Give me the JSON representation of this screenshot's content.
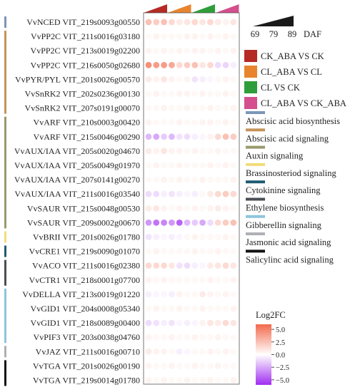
{
  "chart_data": {
    "type": "heatmap",
    "title": "",
    "genes": [
      "VvNCED VIT_219s0093g00550",
      "VvPP2C VIT_211s0016g03180",
      "VvPP2C VIT_213s0019g02200",
      "VvPP2C VIT_216s0050g02680",
      "VvPYR/PYL VIT_201s0026g00570",
      "VvSnRK2 VIT_202s0236g00130",
      "VvSnRK2 VIT_207s0191g00070",
      "VvARF VIT_210s0003g00420",
      "VvARF VIT_215s0046g00290",
      "VvAUX/IAA VIT_205s0020g04670",
      "VvAUX/IAA VIT_205s0049g01970",
      "VvAUX/IAA VIT_207s0141g00270",
      "VvAUX/IAA VIT_211s0016g03540",
      "VvSAUR VIT_215s0048g00530",
      "VvSAUR VIT_209s0002g00670",
      "VvBRII VIT_201s0026g01780",
      "VvCRE1 VIT_219s0090g01070",
      "VvACO VIT_211s0016g02380",
      "VvCTR1 VIT_218s0001g07700",
      "VvDELLA VIT_213s0019g01220",
      "VvGID1 VIT_204s0008g05340",
      "VvGID1 VIT_218s0089g00400",
      "VvPIF3 VIT_203s0038g04760",
      "VvJAZ VIT_211s0016g00710",
      "VvTGA VIT_201s0026g00190",
      "VvTGA VIT_219s0014g01780"
    ],
    "comparisons": [
      {
        "name": "CK_ABA VS CK",
        "color": "#b52a25"
      },
      {
        "name": "CL_ABA VS CL",
        "color": "#e8842e"
      },
      {
        "name": "CL VS CK",
        "color": "#2e9e3a"
      },
      {
        "name": "CL_ABA VS CK_ABA",
        "color": "#d44f8e"
      }
    ],
    "timepoints_label": "DAF",
    "timepoints": [
      "69",
      "79",
      "89"
    ],
    "values": [
      [
        2.5,
        2.0,
        2.5,
        1.5,
        0.8,
        1.0,
        1.5,
        1.0,
        1.5,
        0.8,
        0.5,
        1.0
      ],
      [
        0.3,
        0.5,
        0.3,
        0.3,
        0.3,
        0.5,
        0.5,
        0.3,
        0.5,
        0.3,
        0.5,
        0.3
      ],
      [
        0.5,
        0.3,
        0.5,
        0.3,
        0.5,
        0.3,
        0.5,
        0.5,
        0.3,
        0.5,
        0.3,
        0.5
      ],
      [
        4.5,
        4.0,
        4.0,
        3.5,
        1.5,
        2.0,
        2.5,
        1.0,
        1.5,
        -1.0,
        -1.2,
        -0.5
      ],
      [
        0.8,
        0.5,
        1.0,
        0.5,
        0.3,
        0.5,
        -0.8,
        -0.5,
        -0.3,
        0.3,
        0.5,
        0.3
      ],
      [
        0.3,
        0.5,
        0.3,
        0.3,
        0.5,
        0.5,
        0.3,
        0.5,
        0.3,
        0.3,
        0.5,
        0.3
      ],
      [
        0.3,
        0.3,
        0.5,
        0.3,
        0.3,
        0.5,
        0.3,
        0.3,
        0.5,
        0.3,
        0.3,
        0.5
      ],
      [
        0.5,
        0.3,
        0.3,
        0.3,
        0.5,
        0.3,
        0.3,
        0.5,
        0.5,
        0.3,
        0.5,
        0.3
      ],
      [
        -2.0,
        -2.5,
        -1.5,
        -2.0,
        -0.8,
        -1.0,
        -0.5,
        -0.3,
        0.5,
        1.5,
        2.5,
        2.0
      ],
      [
        0.8,
        0.5,
        1.0,
        0.5,
        0.5,
        0.3,
        0.5,
        0.3,
        0.3,
        0.5,
        0.3,
        0.3
      ],
      [
        0.3,
        0.5,
        0.3,
        0.3,
        0.5,
        0.3,
        0.3,
        0.3,
        0.5,
        0.3,
        0.5,
        0.3
      ],
      [
        0.3,
        0.3,
        0.5,
        0.3,
        0.5,
        0.3,
        0.3,
        0.5,
        0.3,
        0.3,
        0.3,
        0.5
      ],
      [
        -1.0,
        -1.0,
        -0.5,
        -0.8,
        -0.5,
        -0.3,
        -0.5,
        0.3,
        0.8,
        1.5,
        2.0,
        1.5
      ],
      [
        0.8,
        1.0,
        0.5,
        0.3,
        0.5,
        0.3,
        0.5,
        0.3,
        0.5,
        0.8,
        0.5,
        0.3
      ],
      [
        -3.0,
        -4.0,
        -3.5,
        -3.0,
        -4.5,
        -2.0,
        -1.5,
        -2.5,
        -1.0,
        1.5,
        2.0,
        2.5
      ],
      [
        -0.8,
        -0.5,
        -0.3,
        -0.5,
        -0.3,
        0.3,
        0.5,
        0.3,
        0.3,
        0.3,
        0.5,
        0.3
      ],
      [
        0.3,
        0.5,
        0.3,
        0.3,
        0.3,
        0.3,
        0.5,
        0.3,
        0.3,
        0.5,
        0.3,
        0.3
      ],
      [
        1.5,
        1.5,
        1.5,
        1.0,
        -0.8,
        -1.0,
        -0.5,
        -0.3,
        0.8,
        1.0,
        1.5,
        1.0
      ],
      [
        0.5,
        0.3,
        0.5,
        0.3,
        0.3,
        0.3,
        0.3,
        0.3,
        0.5,
        0.3,
        0.3,
        0.5
      ],
      [
        -0.5,
        -0.3,
        -0.3,
        -0.5,
        0.5,
        0.3,
        0.3,
        0.8,
        0.5,
        0.3,
        0.5,
        0.3
      ],
      [
        0.3,
        0.5,
        0.3,
        0.3,
        0.5,
        0.3,
        0.3,
        0.5,
        0.3,
        0.3,
        0.3,
        0.5
      ],
      [
        -1.0,
        -0.8,
        -0.5,
        -0.8,
        -0.3,
        -0.5,
        -0.3,
        0.5,
        1.0,
        0.8,
        1.5,
        1.0
      ],
      [
        0.5,
        0.3,
        0.3,
        0.5,
        0.3,
        0.3,
        0.5,
        0.3,
        0.3,
        0.5,
        0.3,
        0.3
      ],
      [
        0.8,
        0.5,
        0.5,
        0.3,
        -0.5,
        -0.3,
        0.3,
        0.3,
        0.5,
        0.3,
        0.5,
        0.3
      ],
      [
        0.5,
        0.3,
        0.3,
        0.5,
        0.3,
        0.3,
        0.5,
        0.3,
        0.3,
        0.5,
        0.3,
        0.3
      ],
      [
        0.5,
        0.3,
        0.5,
        0.3,
        0.3,
        0.5,
        0.3,
        0.3,
        0.5,
        0.3,
        0.3,
        0.5
      ]
    ],
    "pathways": [
      {
        "name": "Abscisic acid biosynthesis",
        "color": "#7b96b8",
        "rows": [
          0,
          0
        ]
      },
      {
        "name": "Abscisic acid signaling",
        "color": "#c4945a",
        "rows": [
          1,
          6
        ]
      },
      {
        "name": "Auxin signaling",
        "color": "#999a6e",
        "rows": [
          7,
          14
        ]
      },
      {
        "name": "Brassinosteriod signaling",
        "color": "#f2dc7a",
        "rows": [
          15,
          15
        ]
      },
      {
        "name": "Cytokinine signaling",
        "color": "#1e5b72",
        "rows": [
          16,
          16
        ]
      },
      {
        "name": "Ethylene biosynthesis",
        "color": "#4a4e55",
        "rows": [
          17,
          18
        ]
      },
      {
        "name": "Gibberellin signaling",
        "color": "#8ec5dc",
        "rows": [
          19,
          22
        ]
      },
      {
        "name": "Jasmonic acid signaling",
        "color": "#aeb0b4",
        "rows": [
          23,
          23
        ]
      },
      {
        "name": "Salicylinc acid signaling",
        "color": "#141414",
        "rows": [
          24,
          25
        ]
      }
    ],
    "colorbar": {
      "title": "Log2FC",
      "ticks": [
        "5.0",
        "2.5",
        "0.0",
        "−2.5",
        "−5.0"
      ],
      "range": [
        -6,
        6
      ],
      "colors": {
        "high": "#f26a4c",
        "mid": "#ffffff",
        "low": "#a02ef0"
      }
    }
  }
}
